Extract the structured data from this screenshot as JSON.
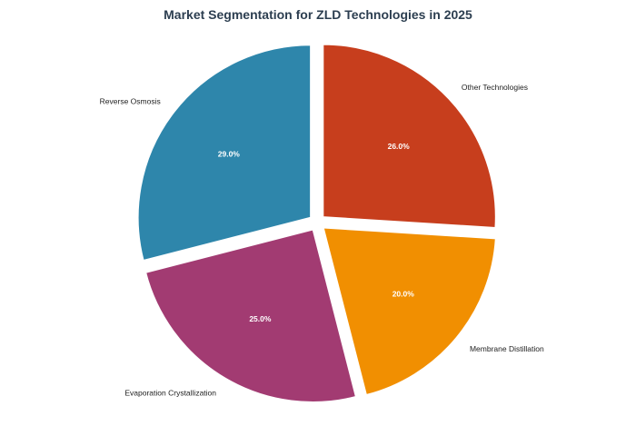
{
  "chart_data": {
    "type": "pie",
    "title": "Market Segmentation for ZLD Technologies in 2025",
    "slices": [
      {
        "label": "Other Technologies",
        "value": 26.0,
        "pct_label": "26.0%",
        "color": "#c73e1d"
      },
      {
        "label": "Membrane Distillation",
        "value": 20.0,
        "pct_label": "20.0%",
        "color": "#f18f01"
      },
      {
        "label": "Evaporation Crystallization",
        "value": 25.0,
        "pct_label": "25.0%",
        "color": "#a23b72"
      },
      {
        "label": "Reverse Osmosis",
        "value": 29.0,
        "pct_label": "29.0%",
        "color": "#2e86ab"
      }
    ],
    "exploded": true,
    "start_angle_deg": 90,
    "direction": "clockwise"
  }
}
